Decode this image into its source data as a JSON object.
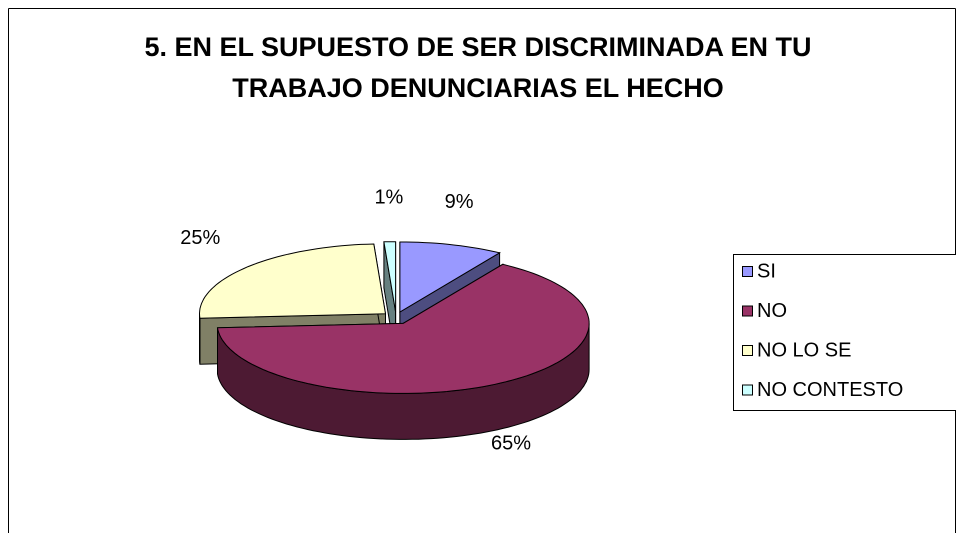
{
  "chart_data": {
    "type": "pie3d",
    "title": "5. EN EL SUPUESTO DE SER DISCRIMINADA EN TU TRABAJO DENUNCIARIAS EL HECHO",
    "categories": [
      "SI",
      "NO",
      "NO LO SE",
      "NO CONTESTO"
    ],
    "values": [
      9,
      65,
      25,
      1
    ],
    "value_labels": [
      "9%",
      "65%",
      "25%",
      "1%"
    ],
    "colors": [
      "#9999ff",
      "#993366",
      "#ffffcc",
      "#ccffff"
    ],
    "legend": "right"
  }
}
